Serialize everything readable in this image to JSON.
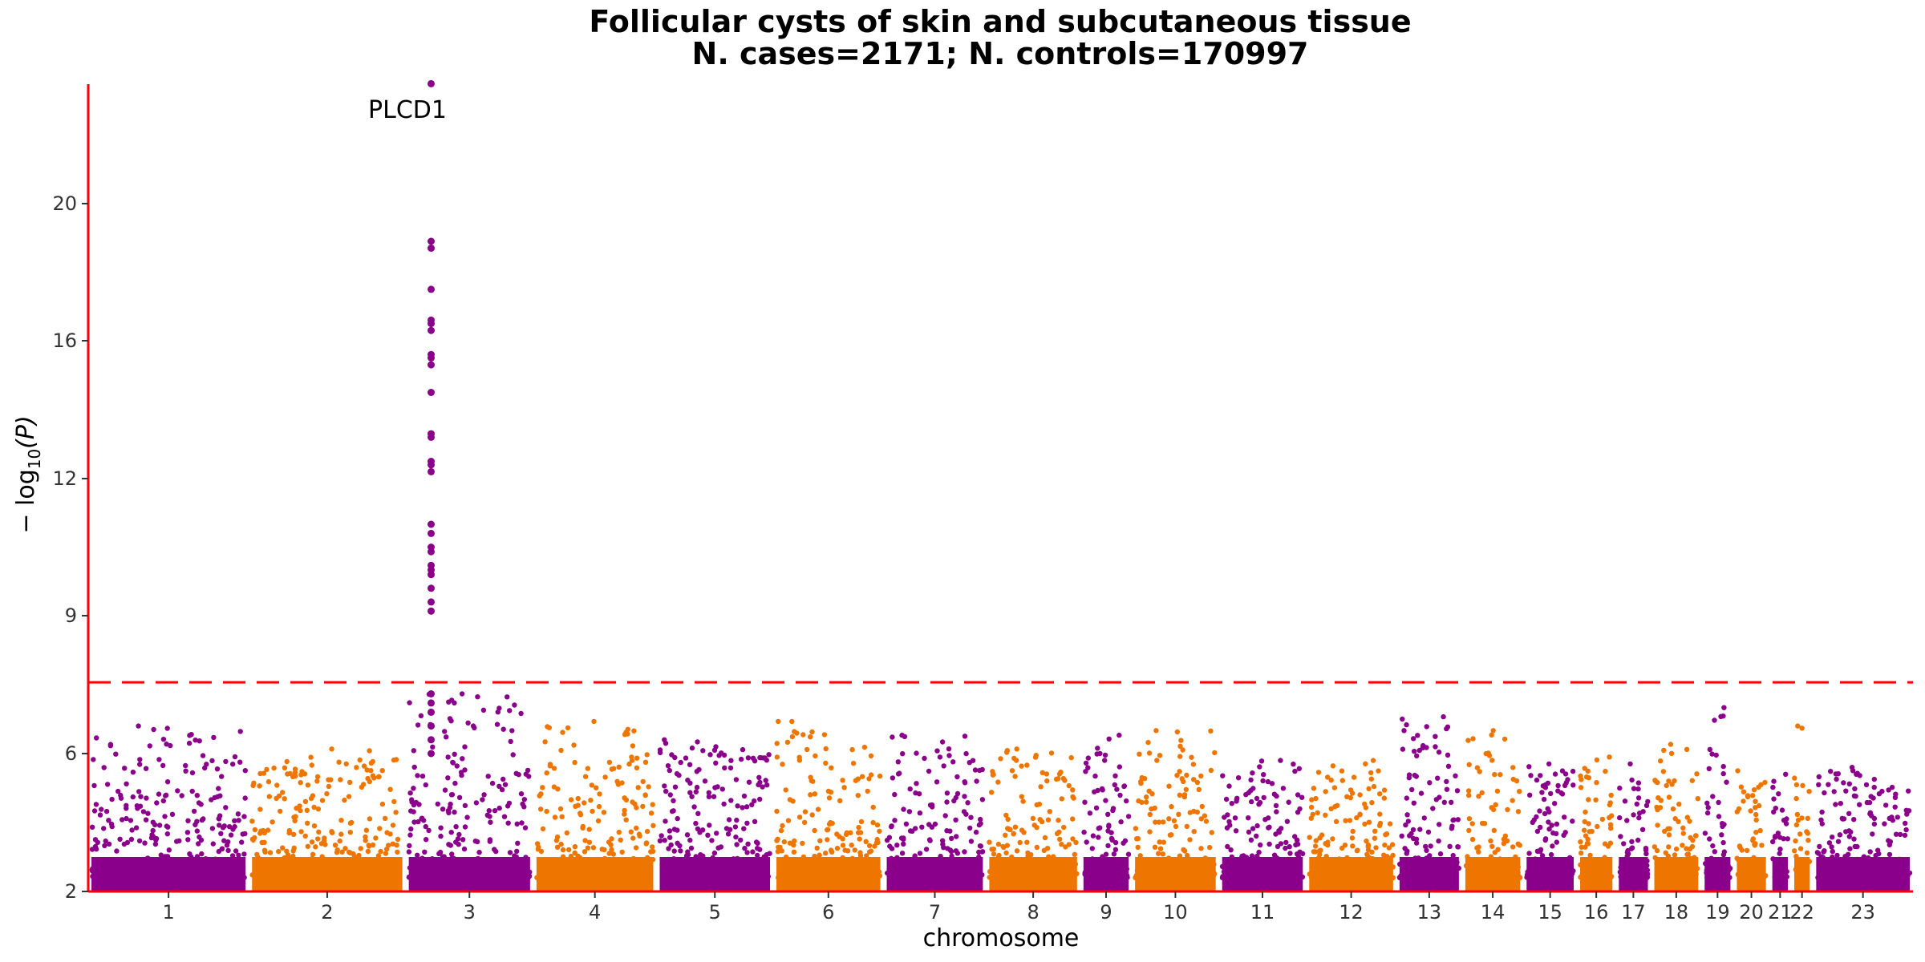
{
  "chart_data": {
    "type": "scatter",
    "title": "Follicular cysts of skin and subcutaneous tissue",
    "subtitle": "N. cases=2171; N. controls=170997",
    "xlabel": "chromosome",
    "ylabel_main": "− log",
    "ylabel_sub": "10",
    "ylabel_arg": "(P)",
    "ylim": [
      2,
      24
    ],
    "y_scale": "-log10 p-value, axis compressed above the significance line",
    "y_ticks": [
      2,
      6,
      9,
      12,
      16,
      20
    ],
    "significance_threshold": 7.55,
    "grid": false,
    "colors": {
      "odd_chromosome": "#8B008B",
      "even_chromosome": "#EE7600",
      "axis": "#FF0000",
      "threshold": "#FF0000"
    },
    "chromosomes": [
      {
        "label": "1",
        "length": 249,
        "peak": 6.6
      },
      {
        "label": "2",
        "length": 243,
        "peak": 6.1
      },
      {
        "label": "3",
        "length": 198,
        "peak": 7.3
      },
      {
        "label": "4",
        "length": 191,
        "peak": 6.7
      },
      {
        "label": "5",
        "length": 181,
        "peak": 6.3
      },
      {
        "label": "6",
        "length": 171,
        "peak": 6.7
      },
      {
        "label": "7",
        "length": 159,
        "peak": 6.4
      },
      {
        "label": "8",
        "length": 146,
        "peak": 6.1
      },
      {
        "label": "9",
        "length": 80,
        "peak": 6.4
      },
      {
        "label": "10",
        "length": 135,
        "peak": 6.5
      },
      {
        "label": "11",
        "length": 135,
        "peak": 5.8
      },
      {
        "label": "12",
        "length": 140,
        "peak": 5.8
      },
      {
        "label": "13",
        "length": 102,
        "peak": 6.8
      },
      {
        "label": "14",
        "length": 95,
        "peak": 6.5
      },
      {
        "label": "15",
        "length": 83,
        "peak": 5.7
      },
      {
        "label": "16",
        "length": 60,
        "peak": 5.9
      },
      {
        "label": "17",
        "length": 55,
        "peak": 5.7
      },
      {
        "label": "18",
        "length": 78,
        "peak": 6.2
      },
      {
        "label": "19",
        "length": 50,
        "peak": 7.0
      },
      {
        "label": "20",
        "length": 55,
        "peak": 5.5
      },
      {
        "label": "21",
        "length": 34,
        "peak": 5.4
      },
      {
        "label": "22",
        "length": 34,
        "peak": 6.6
      },
      {
        "label": "23",
        "length": 155,
        "peak": 5.6
      }
    ],
    "lead_signal": {
      "gene": "PLCD1",
      "chromosome": "3",
      "position_fraction": 0.2,
      "top_value": 23.5,
      "values": [
        18.9,
        18.7,
        17.5,
        16.6,
        16.5,
        16.3,
        15.6,
        15.5,
        15.3,
        14.5,
        13.3,
        13.2,
        12.5,
        12.4,
        12.2,
        11.0,
        10.8,
        10.5,
        10.4,
        10.1,
        10.0,
        9.9,
        9.6,
        9.3,
        9.1,
        7.3,
        7.1,
        6.9,
        6.6,
        6.3,
        6.0
      ]
    }
  }
}
